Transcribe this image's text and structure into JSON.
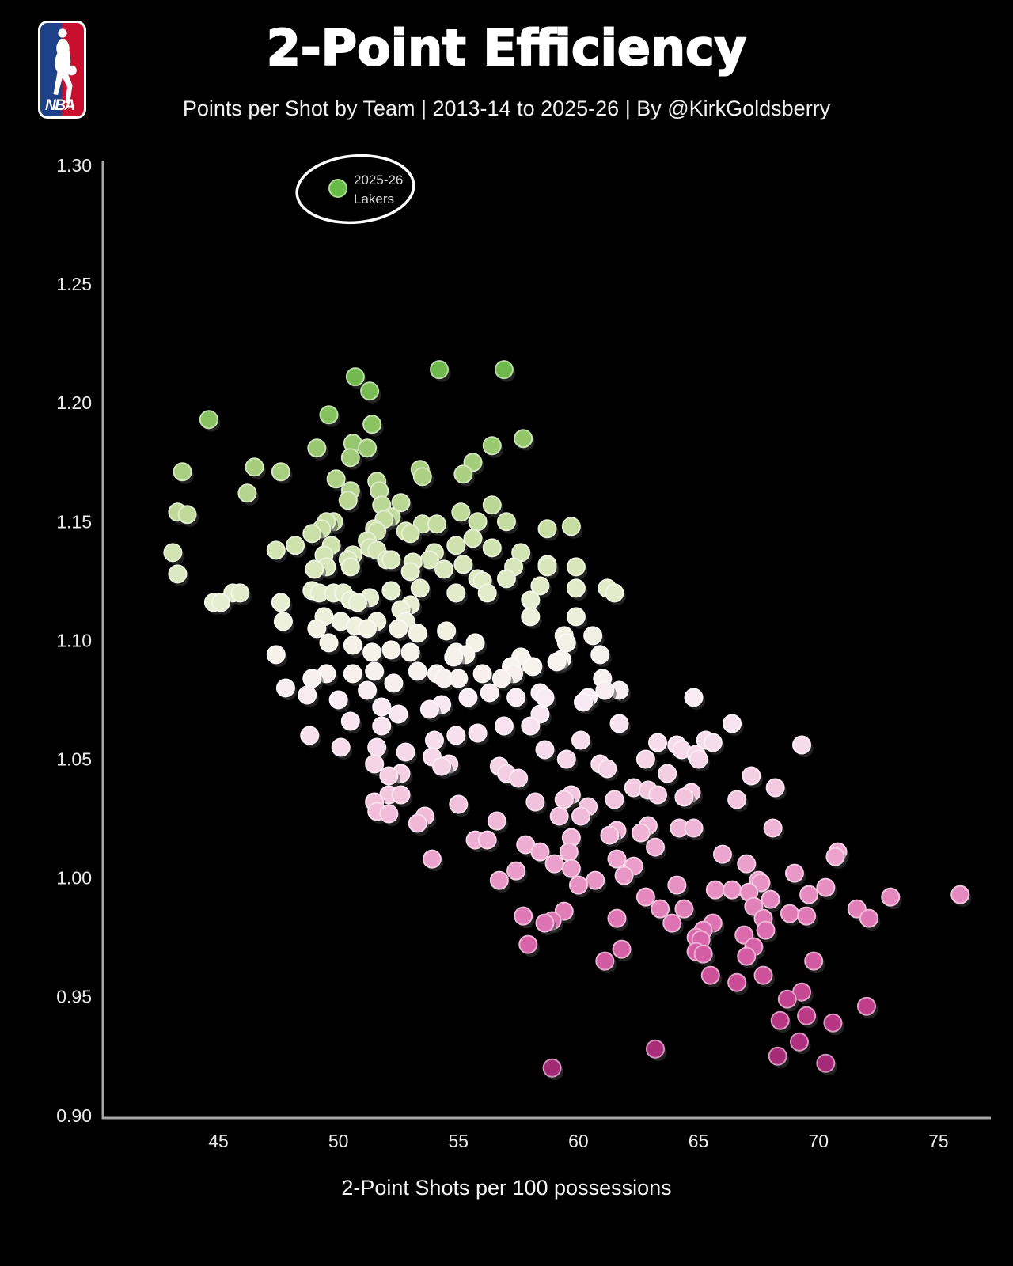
{
  "header": {
    "title": "2-Point Efficiency",
    "subtitle": "Points per Shot by Team | 2013-14 to 2025-26 | By @KirkGoldsberry",
    "logo_text": "NBA"
  },
  "annotation": {
    "line1": "2025-26",
    "line2": "Lakers",
    "dot_color": "#67bb47"
  },
  "axes": {
    "x_label": "2-Point Shots per 100 possessions",
    "x_ticks": [
      45,
      50,
      55,
      60,
      65,
      70,
      75
    ],
    "y_ticks": [
      "1.30",
      "1.25",
      "1.20",
      "1.15",
      "1.10",
      "1.05",
      "1.00",
      "0.95",
      "0.90"
    ]
  },
  "colors": {
    "background": "#000000",
    "axis": "#a8a8a8",
    "tick_text": "#ececec",
    "title_text": "#ffffff",
    "shadow": "rgba(60,60,60,0.55)",
    "logo_blue": "#1d428a",
    "logo_red": "#c8102e"
  },
  "chart_data": {
    "type": "scatter",
    "title": "2-Point Efficiency",
    "subtitle": "Points per Shot by Team | 2013-14 to 2025-26 | By @KirkGoldsberry",
    "xlabel": "2-Point Shots per 100 possessions",
    "ylabel": "",
    "xlim": [
      40.2,
      76.3
    ],
    "ylim": [
      0.9,
      1.3
    ],
    "x_ticks": [
      45,
      50,
      55,
      60,
      65,
      70,
      75
    ],
    "y_ticks": [
      0.9,
      0.95,
      1.0,
      1.05,
      1.1,
      1.15,
      1.2,
      1.25,
      1.3
    ],
    "color_encoding": "points per shot: green = high efficiency, white = middle, magenta = low",
    "colormap": [
      [
        0.915,
        "#9c2670"
      ],
      [
        0.935,
        "#b23180"
      ],
      [
        0.955,
        "#c94b95"
      ],
      [
        0.975,
        "#d968ab"
      ],
      [
        0.995,
        "#e68ec1"
      ],
      [
        1.015,
        "#eeadd2"
      ],
      [
        1.035,
        "#f2c6de"
      ],
      [
        1.055,
        "#f6dbea"
      ],
      [
        1.075,
        "#f8ebf2"
      ],
      [
        1.09,
        "#f6f2ee"
      ],
      [
        1.105,
        "#f0f1e0"
      ],
      [
        1.125,
        "#dfe9c4"
      ],
      [
        1.145,
        "#cadfa6"
      ],
      [
        1.165,
        "#b1d289"
      ],
      [
        1.19,
        "#8cc363"
      ],
      [
        1.22,
        "#67b546"
      ]
    ],
    "points": [
      [
        54.2,
        1.214
      ],
      [
        56.9,
        1.214
      ],
      [
        50.7,
        1.211
      ],
      [
        51.3,
        1.205
      ],
      [
        49.6,
        1.195
      ],
      [
        44.6,
        1.193
      ],
      [
        51.4,
        1.191
      ],
      [
        57.7,
        1.185
      ],
      [
        50.6,
        1.183
      ],
      [
        56.4,
        1.182
      ],
      [
        51.2,
        1.181
      ],
      [
        49.1,
        1.181
      ],
      [
        50.5,
        1.177
      ],
      [
        55.6,
        1.175
      ],
      [
        46.5,
        1.173
      ],
      [
        53.4,
        1.172
      ],
      [
        43.5,
        1.171
      ],
      [
        47.6,
        1.171
      ],
      [
        55.2,
        1.17
      ],
      [
        53.5,
        1.169
      ],
      [
        49.9,
        1.168
      ],
      [
        51.6,
        1.167
      ],
      [
        51.7,
        1.163
      ],
      [
        50.5,
        1.163
      ],
      [
        46.2,
        1.162
      ],
      [
        50.4,
        1.159
      ],
      [
        52.6,
        1.158
      ],
      [
        56.4,
        1.157
      ],
      [
        51.8,
        1.157
      ],
      [
        43.3,
        1.154
      ],
      [
        55.1,
        1.154
      ],
      [
        43.7,
        1.153
      ],
      [
        52.2,
        1.152
      ],
      [
        51.9,
        1.151
      ],
      [
        49.8,
        1.15
      ],
      [
        49.5,
        1.15
      ],
      [
        55.8,
        1.15
      ],
      [
        57.0,
        1.15
      ],
      [
        53.5,
        1.149
      ],
      [
        54.1,
        1.149
      ],
      [
        59.7,
        1.148
      ],
      [
        49.3,
        1.147
      ],
      [
        51.5,
        1.147
      ],
      [
        58.7,
        1.147
      ],
      [
        51.6,
        1.146
      ],
      [
        52.8,
        1.146
      ],
      [
        48.9,
        1.145
      ],
      [
        53.0,
        1.145
      ],
      [
        55.6,
        1.143
      ],
      [
        51.2,
        1.142
      ],
      [
        48.2,
        1.14
      ],
      [
        49.7,
        1.14
      ],
      [
        54.9,
        1.14
      ],
      [
        51.3,
        1.139
      ],
      [
        56.4,
        1.139
      ],
      [
        47.4,
        1.138
      ],
      [
        51.6,
        1.138
      ],
      [
        43.1,
        1.137
      ],
      [
        54.0,
        1.137
      ],
      [
        57.6,
        1.137
      ],
      [
        49.4,
        1.136
      ],
      [
        50.6,
        1.136
      ],
      [
        52.0,
        1.134
      ],
      [
        52.2,
        1.134
      ],
      [
        53.8,
        1.134
      ],
      [
        50.4,
        1.134
      ],
      [
        53.1,
        1.133
      ],
      [
        58.7,
        1.132
      ],
      [
        55.2,
        1.132
      ],
      [
        49.5,
        1.131
      ],
      [
        50.5,
        1.131
      ],
      [
        57.3,
        1.131
      ],
      [
        58.7,
        1.131
      ],
      [
        59.9,
        1.131
      ],
      [
        49.0,
        1.13
      ],
      [
        53.0,
        1.129
      ],
      [
        54.4,
        1.13
      ],
      [
        43.3,
        1.128
      ],
      [
        55.8,
        1.126
      ],
      [
        57.0,
        1.126
      ],
      [
        56.0,
        1.125
      ],
      [
        58.4,
        1.123
      ],
      [
        53.4,
        1.122
      ],
      [
        59.9,
        1.122
      ],
      [
        61.2,
        1.122
      ],
      [
        48.9,
        1.121
      ],
      [
        52.2,
        1.121
      ],
      [
        45.6,
        1.12
      ],
      [
        45.9,
        1.12
      ],
      [
        49.2,
        1.12
      ],
      [
        49.8,
        1.12
      ],
      [
        50.2,
        1.12
      ],
      [
        54.9,
        1.12
      ],
      [
        56.2,
        1.12
      ],
      [
        61.5,
        1.12
      ],
      [
        51.3,
        1.118
      ],
      [
        50.5,
        1.117
      ],
      [
        58.0,
        1.117
      ],
      [
        47.6,
        1.116
      ],
      [
        50.8,
        1.116
      ],
      [
        44.8,
        1.116
      ],
      [
        45.1,
        1.116
      ],
      [
        53.0,
        1.115
      ],
      [
        52.6,
        1.113
      ],
      [
        49.4,
        1.11
      ],
      [
        58.0,
        1.11
      ],
      [
        59.9,
        1.11
      ],
      [
        47.7,
        1.108
      ],
      [
        50.1,
        1.108
      ],
      [
        51.6,
        1.108
      ],
      [
        52.8,
        1.108
      ],
      [
        50.7,
        1.106
      ],
      [
        49.1,
        1.105
      ],
      [
        51.2,
        1.105
      ],
      [
        52.5,
        1.105
      ],
      [
        54.5,
        1.104
      ],
      [
        53.3,
        1.103
      ],
      [
        59.4,
        1.102
      ],
      [
        60.6,
        1.102
      ],
      [
        55.7,
        1.099
      ],
      [
        49.6,
        1.099
      ],
      [
        59.5,
        1.099
      ],
      [
        50.6,
        1.098
      ],
      [
        52.2,
        1.096
      ],
      [
        51.4,
        1.095
      ],
      [
        53.0,
        1.095
      ],
      [
        54.9,
        1.095
      ],
      [
        47.4,
        1.094
      ],
      [
        55.3,
        1.094
      ],
      [
        60.9,
        1.094
      ],
      [
        57.6,
        1.093
      ],
      [
        54.8,
        1.093
      ],
      [
        59.3,
        1.092
      ],
      [
        57.7,
        1.091
      ],
      [
        59.1,
        1.091
      ],
      [
        58.1,
        1.089
      ],
      [
        57.2,
        1.089
      ],
      [
        51.5,
        1.087
      ],
      [
        53.3,
        1.087
      ],
      [
        49.5,
        1.086
      ],
      [
        50.6,
        1.086
      ],
      [
        54.1,
        1.086
      ],
      [
        56.0,
        1.086
      ],
      [
        57.3,
        1.086
      ],
      [
        52.3,
        1.082
      ],
      [
        54.4,
        1.084
      ],
      [
        55.0,
        1.084
      ],
      [
        56.8,
        1.084
      ],
      [
        61.0,
        1.084
      ],
      [
        48.9,
        1.084
      ],
      [
        47.8,
        1.08
      ],
      [
        61.7,
        1.079
      ],
      [
        61.1,
        1.079
      ],
      [
        51.2,
        1.079
      ],
      [
        58.4,
        1.078
      ],
      [
        56.3,
        1.078
      ],
      [
        48.7,
        1.077
      ],
      [
        58.6,
        1.076
      ],
      [
        57.4,
        1.076
      ],
      [
        55.4,
        1.076
      ],
      [
        60.4,
        1.076
      ],
      [
        64.8,
        1.076
      ],
      [
        50.0,
        1.075
      ],
      [
        60.2,
        1.074
      ],
      [
        54.3,
        1.073
      ],
      [
        51.8,
        1.072
      ],
      [
        53.8,
        1.071
      ],
      [
        58.4,
        1.069
      ],
      [
        52.5,
        1.069
      ],
      [
        50.5,
        1.066
      ],
      [
        61.7,
        1.065
      ],
      [
        66.4,
        1.065
      ],
      [
        58.0,
        1.064
      ],
      [
        56.9,
        1.064
      ],
      [
        51.8,
        1.064
      ],
      [
        55.8,
        1.061
      ],
      [
        54.9,
        1.06
      ],
      [
        48.8,
        1.06
      ],
      [
        54.0,
        1.058
      ],
      [
        65.3,
        1.058
      ],
      [
        60.1,
        1.058
      ],
      [
        63.3,
        1.057
      ],
      [
        65.6,
        1.057
      ],
      [
        64.1,
        1.056
      ],
      [
        69.3,
        1.056
      ],
      [
        50.1,
        1.055
      ],
      [
        51.6,
        1.055
      ],
      [
        64.3,
        1.054
      ],
      [
        58.6,
        1.054
      ],
      [
        52.8,
        1.053
      ],
      [
        64.9,
        1.052
      ],
      [
        53.9,
        1.051
      ],
      [
        65.0,
        1.05
      ],
      [
        59.5,
        1.05
      ],
      [
        62.8,
        1.05
      ],
      [
        60.9,
        1.048
      ],
      [
        54.6,
        1.048
      ],
      [
        51.5,
        1.048
      ],
      [
        56.7,
        1.047
      ],
      [
        54.3,
        1.047
      ],
      [
        61.2,
        1.046
      ],
      [
        63.7,
        1.044
      ],
      [
        57.0,
        1.044
      ],
      [
        52.6,
        1.044
      ],
      [
        67.2,
        1.043
      ],
      [
        52.1,
        1.043
      ],
      [
        57.5,
        1.042
      ],
      [
        68.2,
        1.038
      ],
      [
        62.3,
        1.038
      ],
      [
        62.9,
        1.037
      ],
      [
        64.7,
        1.036
      ],
      [
        59.7,
        1.035
      ],
      [
        63.3,
        1.035
      ],
      [
        52.1,
        1.035
      ],
      [
        52.6,
        1.035
      ],
      [
        64.4,
        1.034
      ],
      [
        59.4,
        1.033
      ],
      [
        61.5,
        1.033
      ],
      [
        66.6,
        1.033
      ],
      [
        58.2,
        1.032
      ],
      [
        51.5,
        1.032
      ],
      [
        55.0,
        1.031
      ],
      [
        60.4,
        1.03
      ],
      [
        51.6,
        1.028
      ],
      [
        52.1,
        1.027
      ],
      [
        53.6,
        1.026
      ],
      [
        59.2,
        1.026
      ],
      [
        60.1,
        1.026
      ],
      [
        56.6,
        1.024
      ],
      [
        53.3,
        1.023
      ],
      [
        62.9,
        1.022
      ],
      [
        64.2,
        1.021
      ],
      [
        64.8,
        1.021
      ],
      [
        68.1,
        1.021
      ],
      [
        61.6,
        1.02
      ],
      [
        62.6,
        1.019
      ],
      [
        61.3,
        1.018
      ],
      [
        59.7,
        1.017
      ],
      [
        55.7,
        1.016
      ],
      [
        56.2,
        1.016
      ],
      [
        57.8,
        1.014
      ],
      [
        63.2,
        1.013
      ],
      [
        58.4,
        1.011
      ],
      [
        59.6,
        1.011
      ],
      [
        70.8,
        1.011
      ],
      [
        66.0,
        1.01
      ],
      [
        70.7,
        1.009
      ],
      [
        53.9,
        1.008
      ],
      [
        61.6,
        1.008
      ],
      [
        59.0,
        1.006
      ],
      [
        67.0,
        1.006
      ],
      [
        62.3,
        1.005
      ],
      [
        59.7,
        1.004
      ],
      [
        57.4,
        1.003
      ],
      [
        69.0,
        1.002
      ],
      [
        61.9,
        1.001
      ],
      [
        56.7,
        0.999
      ],
      [
        60.7,
        0.999
      ],
      [
        67.5,
        0.999
      ],
      [
        67.6,
        0.998
      ],
      [
        60.0,
        0.997
      ],
      [
        64.1,
        0.997
      ],
      [
        70.3,
        0.996
      ],
      [
        65.7,
        0.995
      ],
      [
        66.4,
        0.995
      ],
      [
        67.1,
        0.994
      ],
      [
        69.6,
        0.993
      ],
      [
        75.9,
        0.993
      ],
      [
        73.0,
        0.992
      ],
      [
        62.8,
        0.992
      ],
      [
        68.0,
        0.991
      ],
      [
        67.3,
        0.988
      ],
      [
        71.6,
        0.987
      ],
      [
        63.4,
        0.987
      ],
      [
        64.4,
        0.987
      ],
      [
        59.4,
        0.986
      ],
      [
        68.8,
        0.985
      ],
      [
        57.7,
        0.984
      ],
      [
        69.5,
        0.984
      ],
      [
        61.6,
        0.983
      ],
      [
        72.1,
        0.983
      ],
      [
        67.7,
        0.983
      ],
      [
        58.9,
        0.982
      ],
      [
        58.6,
        0.981
      ],
      [
        63.9,
        0.981
      ],
      [
        65.6,
        0.981
      ],
      [
        65.2,
        0.978
      ],
      [
        67.8,
        0.978
      ],
      [
        66.9,
        0.976
      ],
      [
        64.9,
        0.975
      ],
      [
        65.1,
        0.974
      ],
      [
        57.9,
        0.972
      ],
      [
        67.3,
        0.971
      ],
      [
        61.8,
        0.97
      ],
      [
        64.9,
        0.969
      ],
      [
        65.2,
        0.968
      ],
      [
        67.0,
        0.967
      ],
      [
        61.1,
        0.965
      ],
      [
        69.8,
        0.965
      ],
      [
        65.5,
        0.959
      ],
      [
        67.7,
        0.959
      ],
      [
        66.6,
        0.956
      ],
      [
        69.3,
        0.952
      ],
      [
        68.7,
        0.949
      ],
      [
        72.0,
        0.946
      ],
      [
        69.5,
        0.942
      ],
      [
        68.4,
        0.94
      ],
      [
        70.6,
        0.939
      ],
      [
        69.2,
        0.931
      ],
      [
        63.2,
        0.928
      ],
      [
        68.3,
        0.925
      ],
      [
        70.3,
        0.922
      ],
      [
        58.9,
        0.92
      ]
    ]
  }
}
